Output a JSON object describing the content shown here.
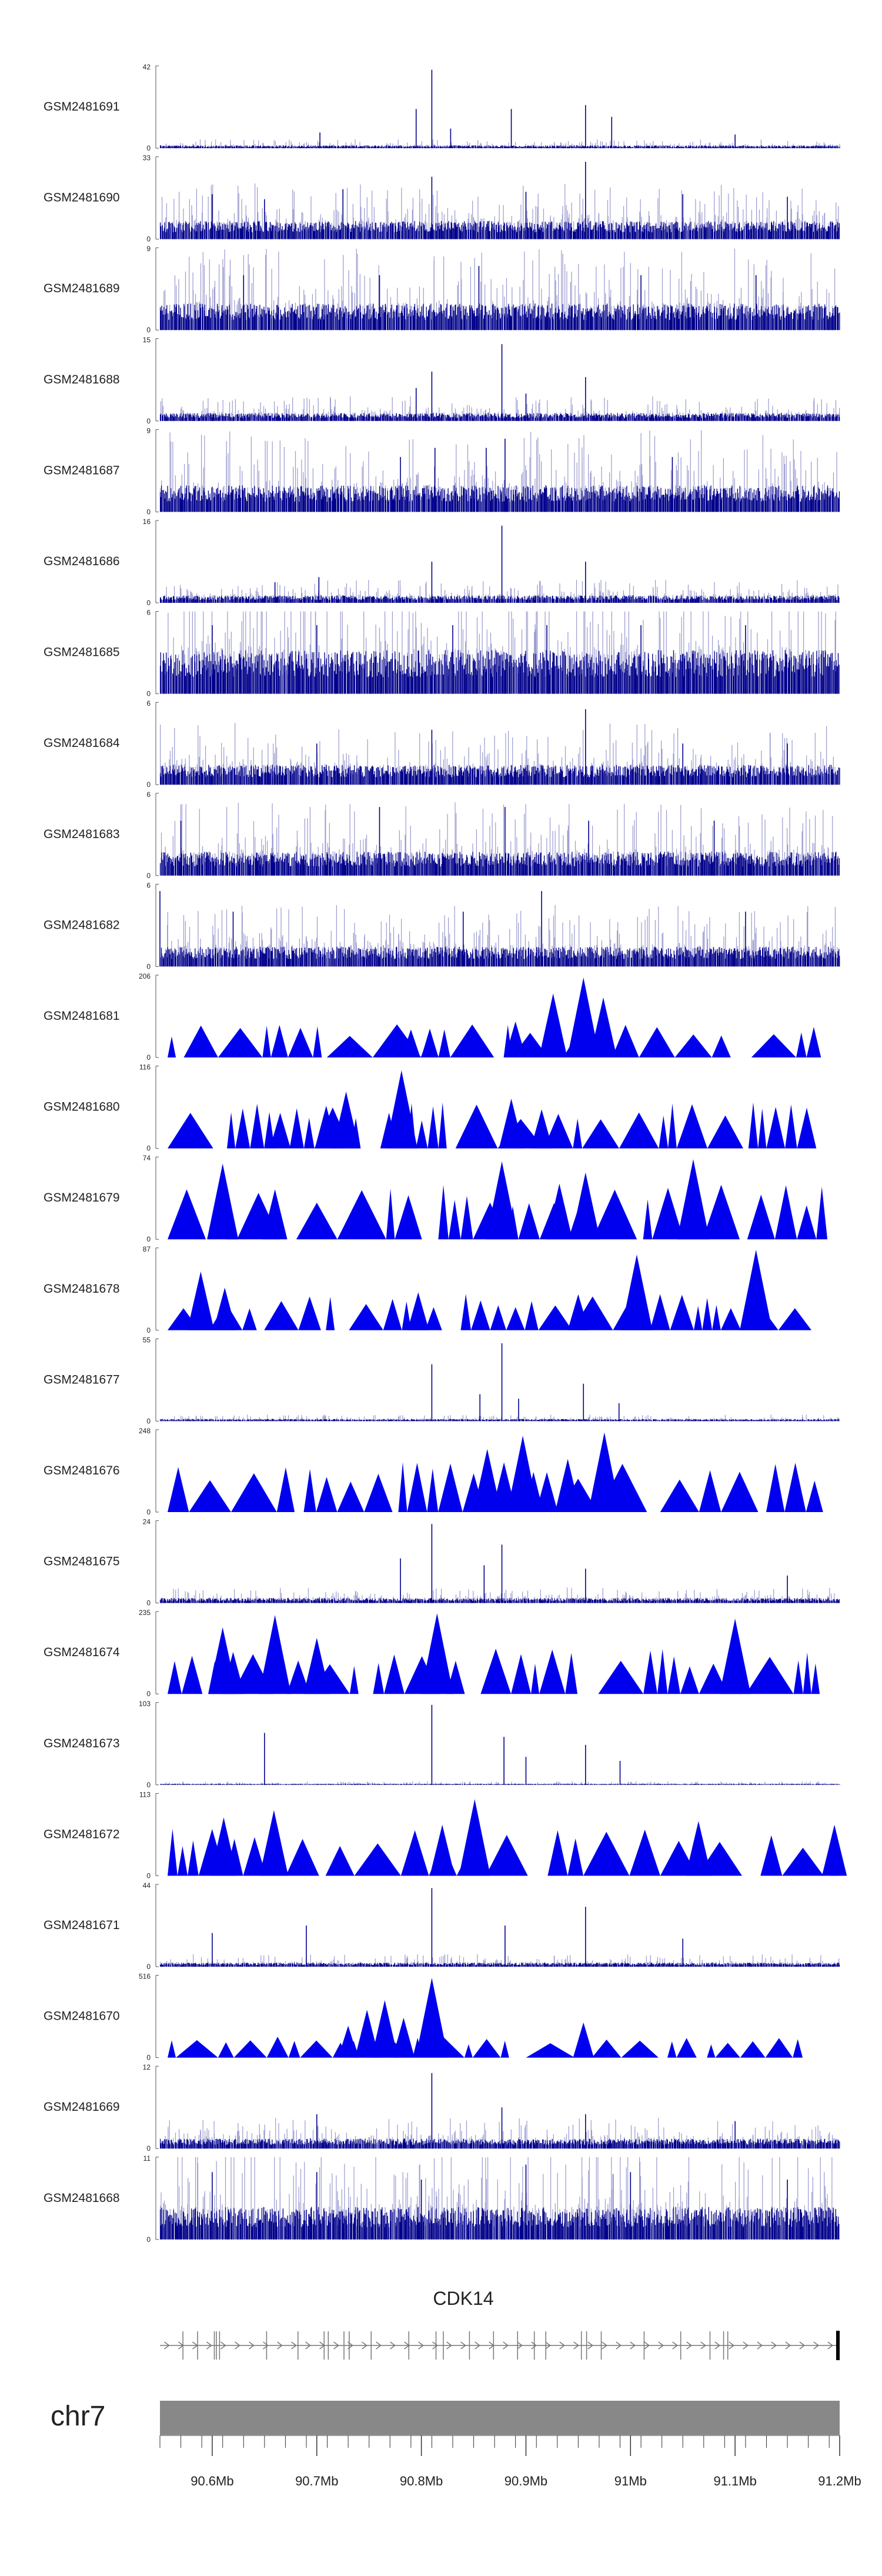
{
  "chart_data": {
    "type": "genome-track-plot",
    "chromosome": "chr7",
    "region_mb": [
      90.55,
      91.2
    ],
    "tracks": [
      {
        "name": "GSM2481691",
        "ymax": "42",
        "ymin": "0",
        "style": "bar",
        "base": 1,
        "spikes": [
          [
            90.81,
            40
          ],
          [
            90.795,
            20
          ],
          [
            90.886,
            20
          ],
          [
            90.957,
            22
          ],
          [
            90.982,
            16
          ],
          [
            90.828,
            10
          ],
          [
            90.703,
            8
          ],
          [
            91.1,
            7
          ]
        ],
        "seed": 691
      },
      {
        "name": "GSM2481690",
        "ymax": "33",
        "ymin": "0",
        "style": "bar",
        "base": 5,
        "spikes": [
          [
            90.957,
            31
          ],
          [
            90.81,
            25
          ],
          [
            90.725,
            20
          ],
          [
            90.6,
            18
          ],
          [
            90.9,
            19
          ],
          [
            91.05,
            18
          ],
          [
            91.15,
            17
          ],
          [
            90.65,
            16
          ]
        ],
        "seed": 690
      },
      {
        "name": "GSM2481689",
        "ymax": "9",
        "ymin": "0",
        "style": "bar",
        "base": 2,
        "spikes": [
          [
            90.855,
            7
          ],
          [
            90.76,
            6
          ],
          [
            90.63,
            6
          ],
          [
            91.01,
            6
          ],
          [
            91.12,
            6
          ]
        ],
        "seed": 689
      },
      {
        "name": "GSM2481688",
        "ymax": "15",
        "ymin": "0",
        "style": "bar",
        "base": 1,
        "spikes": [
          [
            90.877,
            14
          ],
          [
            90.81,
            9
          ],
          [
            90.957,
            8
          ],
          [
            90.795,
            6
          ],
          [
            90.9,
            5
          ]
        ],
        "seed": 688
      },
      {
        "name": "GSM2481687",
        "ymax": "9",
        "ymin": "0",
        "style": "bar",
        "base": 2,
        "spikes": [
          [
            90.88,
            8
          ],
          [
            90.862,
            7
          ],
          [
            90.813,
            7
          ],
          [
            90.78,
            6
          ],
          [
            91.04,
            6
          ]
        ],
        "seed": 687
      },
      {
        "name": "GSM2481686",
        "ymax": "16",
        "ymin": "0",
        "style": "bar",
        "base": 1,
        "spikes": [
          [
            90.877,
            15
          ],
          [
            90.957,
            8
          ],
          [
            90.81,
            8
          ],
          [
            90.702,
            5
          ],
          [
            90.66,
            4
          ]
        ],
        "seed": 686
      },
      {
        "name": "GSM2481685",
        "ymax": "6",
        "ymin": "0",
        "style": "bar",
        "base": 2.2,
        "spikes": [
          [
            90.6,
            5
          ],
          [
            90.7,
            5
          ],
          [
            90.83,
            5
          ],
          [
            90.92,
            5
          ],
          [
            91.01,
            5
          ],
          [
            91.11,
            5
          ]
        ],
        "seed": 685
      },
      {
        "name": "GSM2481684",
        "ymax": "6",
        "ymin": "0",
        "style": "bar",
        "base": 1,
        "spikes": [
          [
            90.957,
            5.5
          ],
          [
            90.81,
            4
          ],
          [
            90.7,
            3
          ],
          [
            91.05,
            3
          ],
          [
            91.15,
            3
          ]
        ],
        "seed": 684
      },
      {
        "name": "GSM2481683",
        "ymax": "6",
        "ymin": "0",
        "style": "bar",
        "base": 1.2,
        "spikes": [
          [
            90.76,
            5
          ],
          [
            90.88,
            5
          ],
          [
            90.57,
            4
          ],
          [
            90.96,
            4
          ],
          [
            91.08,
            4
          ]
        ],
        "seed": 683
      },
      {
        "name": "GSM2481682",
        "ymax": "6",
        "ymin": "0",
        "style": "bar",
        "base": 1,
        "spikes": [
          [
            90.55,
            5.5
          ],
          [
            90.915,
            5.5
          ],
          [
            90.62,
            4
          ],
          [
            90.84,
            4
          ],
          [
            91.11,
            4
          ]
        ],
        "seed": 682
      },
      {
        "name": "GSM2481681",
        "ymax": "206",
        "ymin": "0",
        "style": "tri",
        "end_mb": 91.185,
        "peaks": [
          [
            90.926,
            160
          ],
          [
            90.955,
            200
          ],
          [
            90.974,
            150
          ],
          [
            90.89,
            90
          ],
          [
            90.79,
            70
          ],
          [
            90.808,
            60
          ]
        ],
        "tri_h": 70,
        "seed": 681
      },
      {
        "name": "GSM2481680",
        "ymax": "116",
        "ymin": "0",
        "style": "tri",
        "end_mb": 91.2,
        "peaks": [
          [
            90.781,
            110
          ],
          [
            90.728,
            80
          ],
          [
            90.709,
            60
          ],
          [
            90.886,
            70
          ],
          [
            90.915,
            55
          ],
          [
            90.665,
            50
          ]
        ],
        "tri_h": 55,
        "seed": 680
      },
      {
        "name": "GSM2481679",
        "ymax": "74",
        "ymin": "0",
        "style": "tri",
        "end_mb": 91.2,
        "peaks": [
          [
            91.06,
            72
          ],
          [
            90.877,
            70
          ],
          [
            90.61,
            68
          ],
          [
            90.957,
            60
          ],
          [
            90.932,
            50
          ],
          [
            90.66,
            45
          ]
        ],
        "tri_h": 42,
        "seed": 679
      },
      {
        "name": "GSM2481678",
        "ymax": "87",
        "ymin": "0",
        "style": "tri",
        "end_mb": 91.2,
        "peaks": [
          [
            91.12,
            85
          ],
          [
            91.006,
            80
          ],
          [
            90.589,
            62
          ],
          [
            90.612,
            45
          ],
          [
            90.797,
            40
          ],
          [
            90.95,
            38
          ]
        ],
        "tri_h": 32,
        "seed": 678
      },
      {
        "name": "GSM2481677",
        "ymax": "55",
        "ymin": "0",
        "style": "bar",
        "base": 1,
        "spikes": [
          [
            90.877,
            52
          ],
          [
            90.81,
            38
          ],
          [
            90.856,
            18
          ],
          [
            90.955,
            25
          ],
          [
            90.893,
            15
          ],
          [
            90.989,
            12
          ]
        ],
        "seed": 677
      },
      {
        "name": "GSM2481676",
        "ymax": "248",
        "ymin": "0",
        "style": "tri",
        "end_mb": 91.185,
        "peaks": [
          [
            90.975,
            240
          ],
          [
            90.897,
            230
          ],
          [
            90.863,
            190
          ],
          [
            90.94,
            160
          ],
          [
            90.879,
            150
          ],
          [
            90.92,
            120
          ]
        ],
        "tri_h": 130,
        "seed": 676
      },
      {
        "name": "GSM2481675",
        "ymax": "24",
        "ymin": "0",
        "style": "bar",
        "base": 1,
        "spikes": [
          [
            90.81,
            23
          ],
          [
            90.877,
            17
          ],
          [
            90.78,
            13
          ],
          [
            90.86,
            11
          ],
          [
            90.957,
            10
          ],
          [
            91.15,
            8
          ]
        ],
        "seed": 675
      },
      {
        "name": "GSM2481674",
        "ymax": "235",
        "ymin": "0",
        "style": "tri",
        "end_mb": 91.185,
        "peaks": [
          [
            90.66,
            225
          ],
          [
            90.815,
            230
          ],
          [
            91.1,
            215
          ],
          [
            90.61,
            190
          ],
          [
            90.62,
            120
          ],
          [
            90.7,
            160
          ]
        ],
        "tri_h": 110,
        "seed": 674
      },
      {
        "name": "GSM2481673",
        "ymax": "103",
        "ymin": "0",
        "style": "bar",
        "base": 1,
        "spikes": [
          [
            90.81,
            100
          ],
          [
            90.65,
            65
          ],
          [
            90.879,
            60
          ],
          [
            90.957,
            50
          ],
          [
            90.9,
            35
          ],
          [
            90.99,
            30
          ]
        ],
        "seed": 673
      },
      {
        "name": "GSM2481672",
        "ymax": "113",
        "ymin": "0",
        "style": "tri",
        "end_mb": 91.2,
        "peaks": [
          [
            90.851,
            105
          ],
          [
            90.659,
            90
          ],
          [
            90.611,
            80
          ],
          [
            90.82,
            70
          ],
          [
            91.065,
            75
          ],
          [
            91.195,
            70
          ]
        ],
        "tri_h": 55,
        "seed": 672
      },
      {
        "name": "GSM2481671",
        "ymax": "44",
        "ymin": "0",
        "style": "bar",
        "base": 1.5,
        "spikes": [
          [
            90.81,
            42
          ],
          [
            90.957,
            32
          ],
          [
            90.69,
            22
          ],
          [
            90.88,
            22
          ],
          [
            90.6,
            18
          ],
          [
            91.05,
            15
          ]
        ],
        "seed": 671
      },
      {
        "name": "GSM2481670",
        "ymax": "516",
        "ymin": "0",
        "style": "tri",
        "end_mb": 91.185,
        "peaks": [
          [
            90.81,
            500
          ],
          [
            90.765,
            360
          ],
          [
            90.748,
            300
          ],
          [
            90.783,
            250
          ],
          [
            90.955,
            220
          ],
          [
            90.73,
            200
          ]
        ],
        "tri_h": 110,
        "seed": 670
      },
      {
        "name": "GSM2481669",
        "ymax": "12",
        "ymin": "0",
        "style": "bar",
        "base": 1,
        "spikes": [
          [
            90.81,
            11
          ],
          [
            90.877,
            6
          ],
          [
            90.7,
            5
          ],
          [
            90.957,
            5
          ],
          [
            91.1,
            4
          ]
        ],
        "seed": 669
      },
      {
        "name": "GSM2481668",
        "ymax": "11",
        "ymin": "0",
        "style": "bar",
        "base": 3,
        "spikes": [
          [
            90.9,
            10
          ],
          [
            90.7,
            9
          ],
          [
            91.0,
            9
          ],
          [
            90.6,
            9
          ],
          [
            91.15,
            8
          ],
          [
            90.8,
            8
          ]
        ],
        "seed": 668
      }
    ],
    "gene_track": {
      "label": "CDK14",
      "start_mb": 90.55,
      "end_mb": 91.2,
      "strand": "+",
      "exons_mb": [
        90.572,
        90.586,
        90.602,
        90.604,
        90.607,
        90.652,
        90.682,
        90.707,
        90.711,
        90.726,
        90.731,
        90.752,
        90.788,
        90.814,
        90.821,
        90.846,
        90.869,
        90.892,
        90.908,
        90.919,
        90.953,
        90.958,
        90.972,
        91.013,
        91.048,
        91.076,
        91.089,
        91.093
      ]
    },
    "axis": {
      "label": "chr7",
      "ticks": [
        {
          "mb": 90.6,
          "label": "90.6Mb"
        },
        {
          "mb": 90.7,
          "label": "90.7Mb"
        },
        {
          "mb": 90.8,
          "label": "90.8Mb"
        },
        {
          "mb": 90.9,
          "label": "90.9Mb"
        },
        {
          "mb": 91.0,
          "label": "91Mb"
        },
        {
          "mb": 91.1,
          "label": "91.1Mb"
        },
        {
          "mb": 91.2,
          "label": "91.2Mb"
        }
      ],
      "minor_step_mb": 0.02
    },
    "colors": {
      "bar_dark": "#00008B",
      "bar_light": "#9A9ACF",
      "triangle": "#0000EE",
      "gene": "#777777",
      "ideogram": "#888888",
      "axis": "#333333"
    }
  }
}
